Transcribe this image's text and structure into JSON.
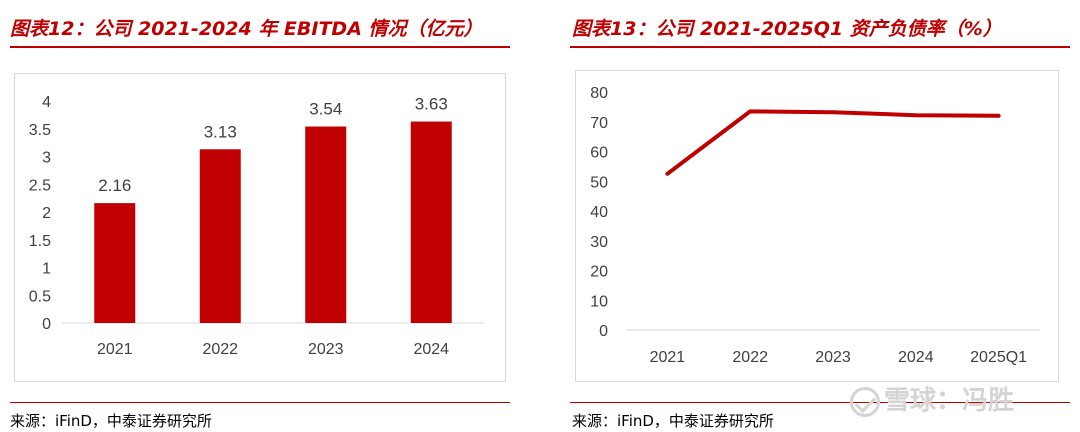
{
  "left_panel": {
    "title": "图表12：公司 2021-2024 年 EBITDA 情况（亿元）",
    "source": "来源：iFinD，中泰证券研究所"
  },
  "right_panel": {
    "title": "图表13：公司 2021-2025Q1 资产负债率（%）",
    "source": "来源：iFinD，中泰证券研究所"
  },
  "watermark": {
    "text": "雪球：冯胜",
    "icon": "snowball-logo-icon"
  },
  "colors": {
    "accent": "#c00000",
    "axis": "#d9d9d9",
    "text": "#404040"
  },
  "chart_data": [
    {
      "type": "bar",
      "title": "图表12：公司 2021-2024 年 EBITDA 情况（亿元）",
      "categories": [
        "2021",
        "2022",
        "2023",
        "2024"
      ],
      "values": [
        2.16,
        3.13,
        3.54,
        3.63
      ],
      "data_labels": [
        "2.16",
        "3.13",
        "3.54",
        "3.63"
      ],
      "ylim": [
        0,
        4
      ],
      "yticks": [
        "0",
        "0.5",
        "1",
        "1.5",
        "2",
        "2.5",
        "3",
        "3.5",
        "4"
      ],
      "ytick_values": [
        0,
        0.5,
        1,
        1.5,
        2,
        2.5,
        3,
        3.5,
        4
      ],
      "grid": false,
      "color": "#c00000"
    },
    {
      "type": "line",
      "title": "图表13：公司 2021-2025Q1 资产负债率（%）",
      "categories": [
        "2021",
        "2022",
        "2023",
        "2024",
        "2025Q1"
      ],
      "values": [
        52.5,
        73.5,
        73.2,
        72.2,
        72.0
      ],
      "ylim": [
        0,
        80
      ],
      "yticks": [
        "0",
        "10",
        "20",
        "30",
        "40",
        "50",
        "60",
        "70",
        "80"
      ],
      "ytick_values": [
        0,
        10,
        20,
        30,
        40,
        50,
        60,
        70,
        80
      ],
      "grid": false,
      "color": "#c00000"
    }
  ]
}
